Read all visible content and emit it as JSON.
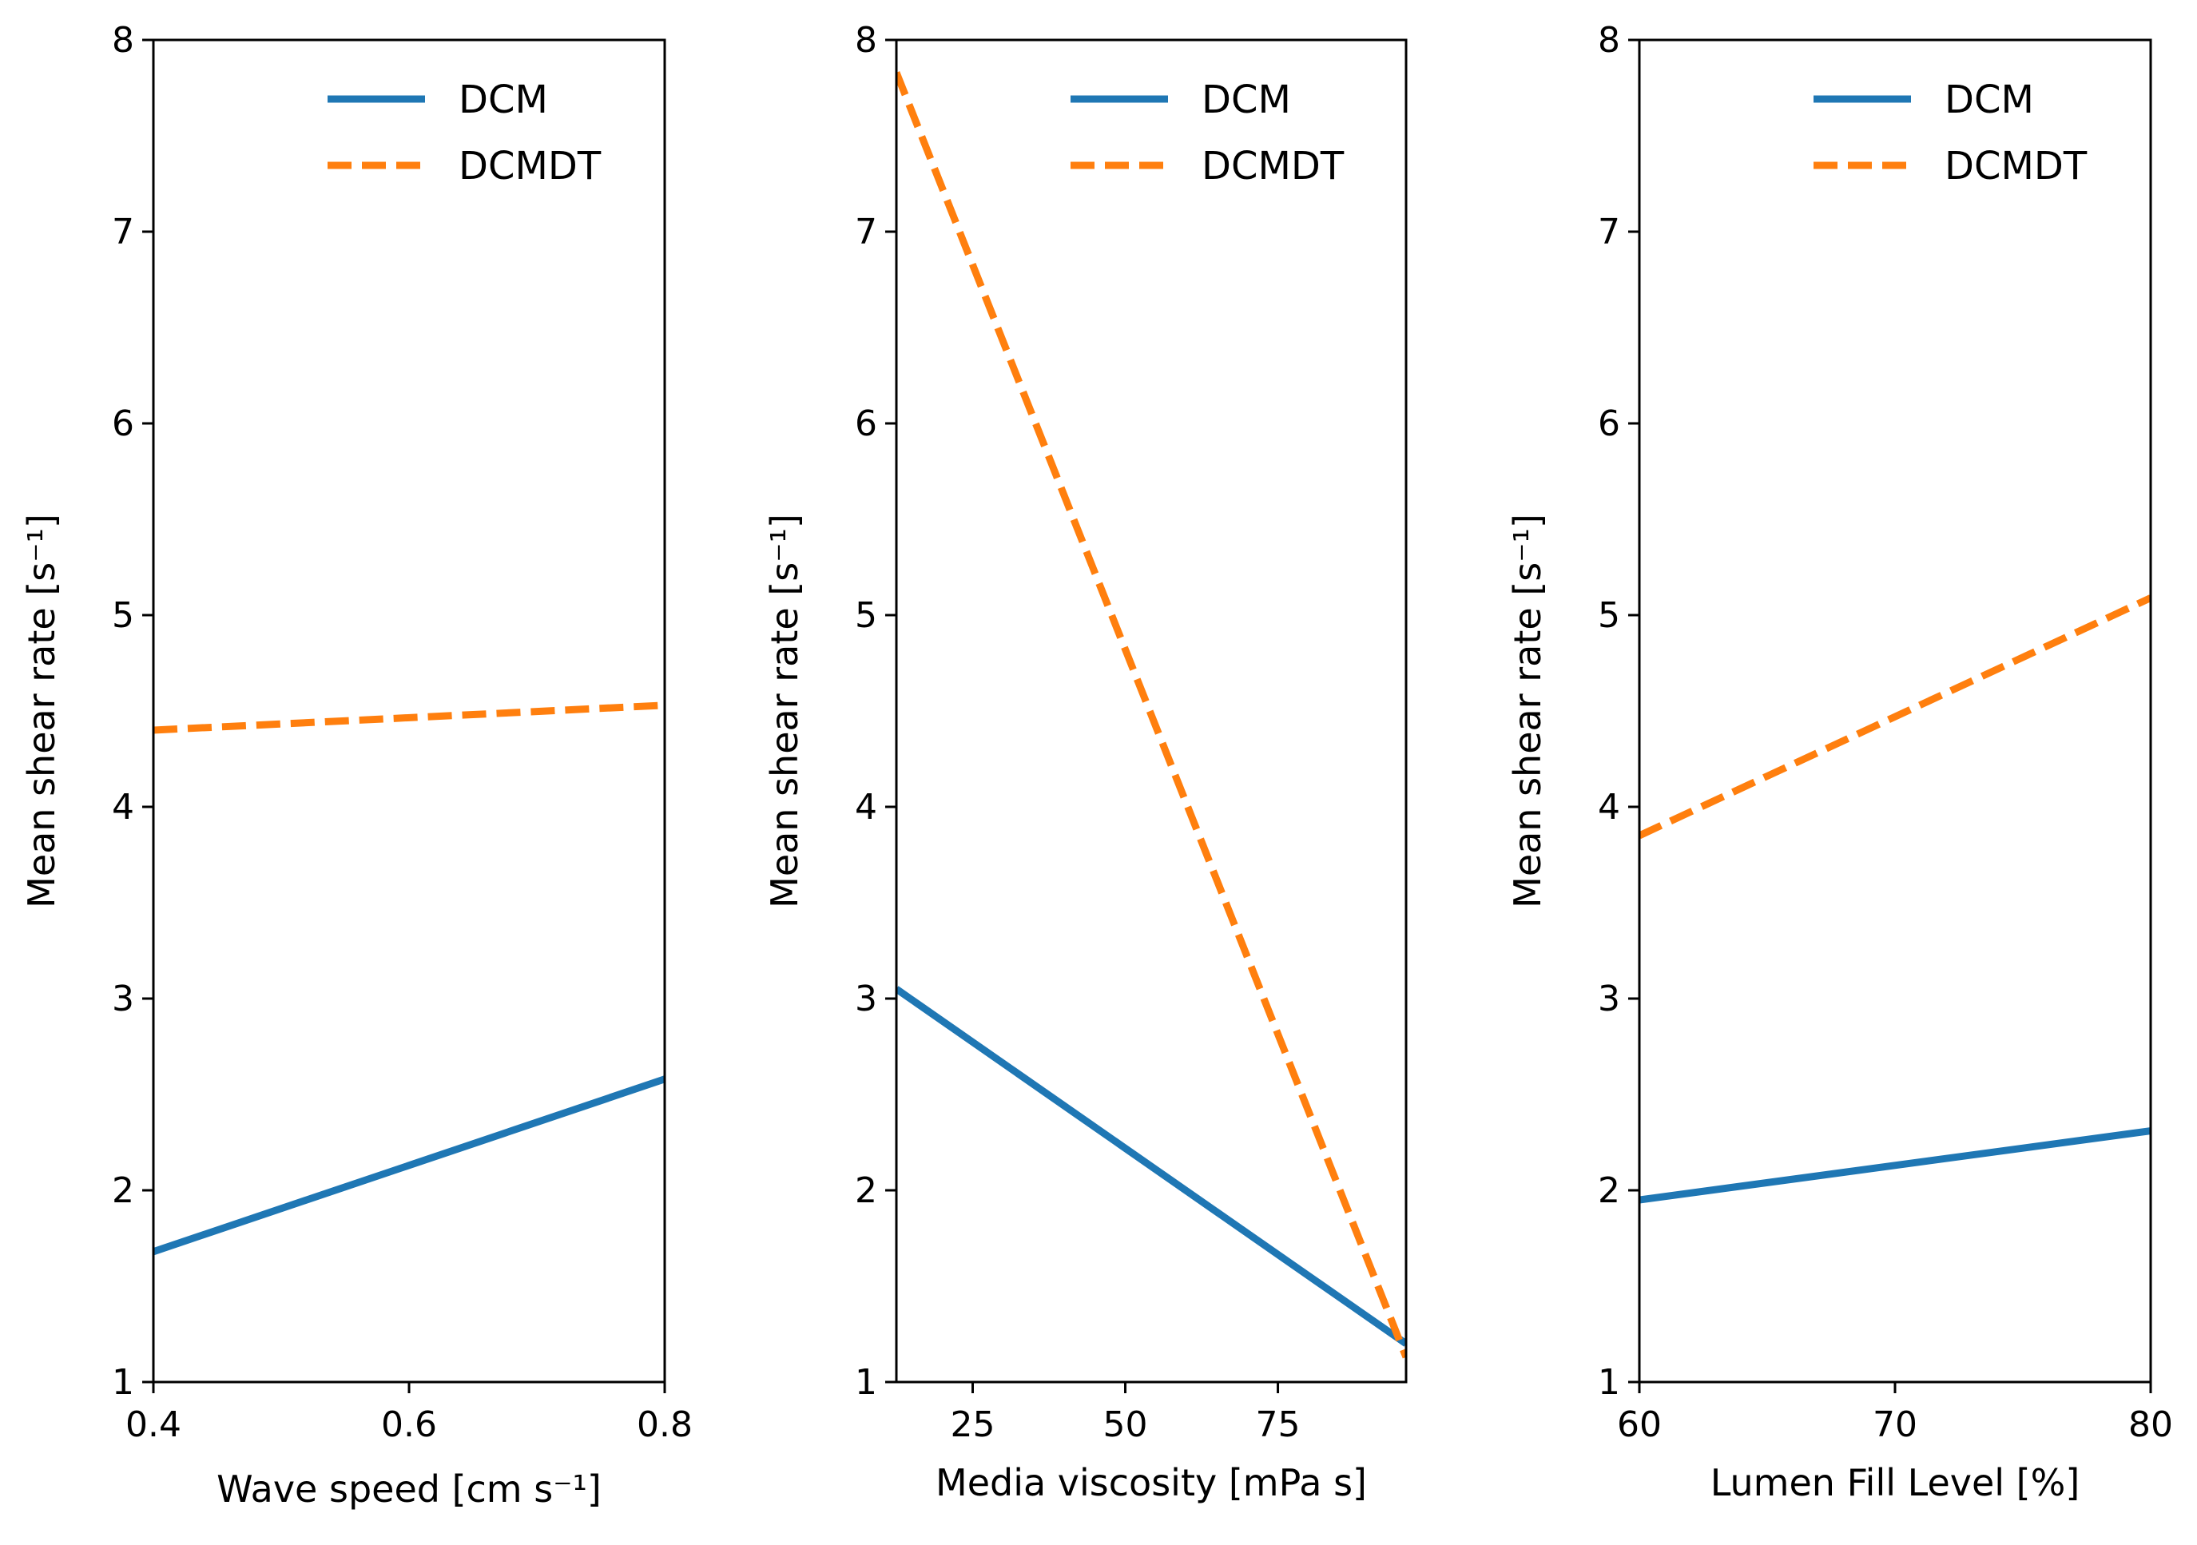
{
  "chart_data": [
    {
      "type": "line",
      "xlabel": "Wave speed [cm s⁻¹]",
      "ylabel": "Mean shear rate [s⁻¹]",
      "xlim": [
        0.4,
        0.8
      ],
      "ylim": [
        1,
        8
      ],
      "xticks": [
        0.4,
        0.6,
        0.8
      ],
      "xtick_labels": [
        "0.4",
        "0.6",
        "0.8"
      ],
      "yticks": [
        1,
        2,
        3,
        4,
        5,
        6,
        7,
        8
      ],
      "legend": "top-right",
      "series": [
        {
          "name": "DCM",
          "style": "solid",
          "color": "#1f77b4",
          "x": [
            0.4,
            0.8
          ],
          "y": [
            1.68,
            2.58
          ]
        },
        {
          "name": "DCMDT",
          "style": "dashed",
          "color": "#ff7f0e",
          "x": [
            0.4,
            0.8
          ],
          "y": [
            4.4,
            4.53
          ]
        }
      ]
    },
    {
      "type": "line",
      "xlabel": "Media viscosity [mPa s]",
      "ylabel": "Mean shear rate [s⁻¹]",
      "xlim": [
        12.5,
        96
      ],
      "ylim": [
        1,
        8
      ],
      "xticks": [
        25,
        50,
        75
      ],
      "xtick_labels": [
        "25",
        "50",
        "75"
      ],
      "yticks": [
        1,
        2,
        3,
        4,
        5,
        6,
        7,
        8
      ],
      "legend": "top-right",
      "series": [
        {
          "name": "DCM",
          "style": "solid",
          "color": "#1f77b4",
          "x": [
            12.5,
            96
          ],
          "y": [
            3.05,
            1.2
          ]
        },
        {
          "name": "DCMDT",
          "style": "dashed",
          "color": "#ff7f0e",
          "x": [
            12.5,
            96
          ],
          "y": [
            7.83,
            1.13
          ]
        }
      ]
    },
    {
      "type": "line",
      "xlabel": "Lumen Fill Level [%]",
      "ylabel": "Mean shear rate [s⁻¹]",
      "xlim": [
        60,
        80
      ],
      "ylim": [
        1,
        8
      ],
      "xticks": [
        60,
        70,
        80
      ],
      "xtick_labels": [
        "60",
        "70",
        "80"
      ],
      "yticks": [
        1,
        2,
        3,
        4,
        5,
        6,
        7,
        8
      ],
      "legend": "top-right",
      "series": [
        {
          "name": "DCM",
          "style": "solid",
          "color": "#1f77b4",
          "x": [
            60,
            80
          ],
          "y": [
            1.95,
            2.31
          ]
        },
        {
          "name": "DCMDT",
          "style": "dashed",
          "color": "#ff7f0e",
          "x": [
            60,
            80
          ],
          "y": [
            3.85,
            5.09
          ]
        }
      ]
    }
  ]
}
